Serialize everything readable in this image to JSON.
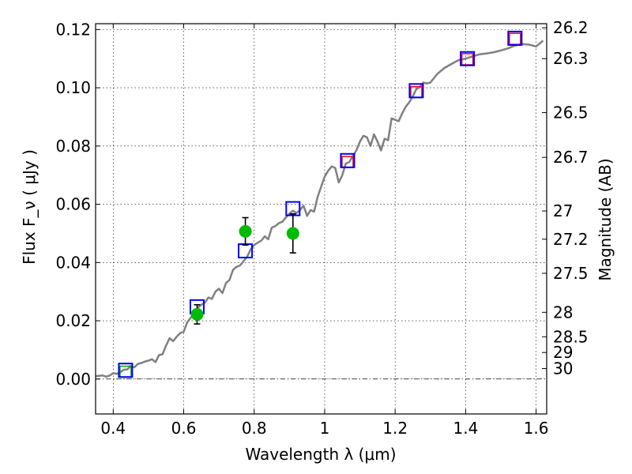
{
  "chart_data": {
    "type": "scatter",
    "xlabel": "Wavelength  λ (μm)",
    "ylabel_left": "Flux  F_ν  ( μJy )",
    "ylabel_right": "Magnitude (AB)",
    "xlim": [
      0.35,
      1.63
    ],
    "ylim": [
      -0.012,
      0.122
    ],
    "grid": true,
    "x_ticks": [
      0.4,
      0.6,
      0.8,
      1.0,
      1.2,
      1.4,
      1.6
    ],
    "x_tick_labels": [
      "0.4",
      "0.6",
      "0.8",
      "1",
      "1.2",
      "1.4",
      "1.6"
    ],
    "y_ticks": [
      0.0,
      0.02,
      0.04,
      0.06,
      0.08,
      0.1,
      0.12
    ],
    "y_tick_labels": [
      "0.00",
      "0.02",
      "0.04",
      "0.06",
      "0.08",
      "0.10",
      "0.12"
    ],
    "right_ticks": [
      {
        "label": "26.2",
        "flux": 0.1206
      },
      {
        "label": "26.3",
        "flux": 0.11
      },
      {
        "label": "26.5",
        "flux": 0.0915
      },
      {
        "label": "26.7",
        "flux": 0.0761
      },
      {
        "label": "27",
        "flux": 0.0577
      },
      {
        "label": "27.2",
        "flux": 0.048
      },
      {
        "label": "27.5",
        "flux": 0.0363
      },
      {
        "label": "28",
        "flux": 0.0229
      },
      {
        "label": "28.5",
        "flux": 0.0145
      },
      {
        "label": "29",
        "flux": 0.0091
      },
      {
        "label": "30",
        "flux": 0.0036
      }
    ],
    "series": [
      {
        "kind": "sed_model_line",
        "color": "#808080",
        "x": [
          0.35,
          0.37,
          0.38,
          0.39,
          0.4,
          0.41,
          0.42,
          0.43,
          0.44,
          0.45,
          0.46,
          0.47,
          0.48,
          0.49,
          0.5,
          0.51,
          0.52,
          0.53,
          0.54,
          0.55,
          0.56,
          0.57,
          0.58,
          0.59,
          0.6,
          0.61,
          0.62,
          0.63,
          0.64,
          0.65,
          0.66,
          0.67,
          0.68,
          0.69,
          0.7,
          0.71,
          0.72,
          0.73,
          0.74,
          0.75,
          0.76,
          0.77,
          0.78,
          0.79,
          0.8,
          0.81,
          0.82,
          0.83,
          0.84,
          0.85,
          0.86,
          0.87,
          0.88,
          0.89,
          0.9,
          0.91,
          0.92,
          0.93,
          0.94,
          0.95,
          0.96,
          0.97,
          0.98,
          0.99,
          1.0,
          1.01,
          1.02,
          1.03,
          1.04,
          1.05,
          1.06,
          1.07,
          1.08,
          1.09,
          1.1,
          1.11,
          1.12,
          1.13,
          1.14,
          1.15,
          1.16,
          1.17,
          1.18,
          1.19,
          1.2,
          1.21,
          1.22,
          1.23,
          1.24,
          1.25,
          1.26,
          1.27,
          1.28,
          1.29,
          1.3,
          1.32,
          1.34,
          1.36,
          1.38,
          1.4,
          1.42,
          1.44,
          1.46,
          1.48,
          1.5,
          1.52,
          1.54,
          1.56,
          1.58,
          1.6,
          1.62
        ],
        "y": [
          0.001,
          0.0012,
          0.0008,
          0.0012,
          0.002,
          0.0018,
          0.0023,
          0.0032,
          0.0033,
          0.0045,
          0.004,
          0.0052,
          0.0055,
          0.006,
          0.0063,
          0.0068,
          0.0058,
          0.0082,
          0.0085,
          0.0115,
          0.014,
          0.013,
          0.0145,
          0.0158,
          0.0162,
          0.0195,
          0.021,
          0.0228,
          0.0245,
          0.0255,
          0.0262,
          0.028,
          0.0275,
          0.03,
          0.031,
          0.0295,
          0.033,
          0.034,
          0.0375,
          0.0385,
          0.039,
          0.0405,
          0.042,
          0.0445,
          0.046,
          0.0468,
          0.0475,
          0.049,
          0.048,
          0.052,
          0.0525,
          0.0535,
          0.054,
          0.0555,
          0.0568,
          0.0578,
          0.057,
          0.058,
          0.0595,
          0.056,
          0.058,
          0.0575,
          0.0625,
          0.066,
          0.0695,
          0.0715,
          0.073,
          0.0725,
          0.0675,
          0.07,
          0.074,
          0.0745,
          0.0765,
          0.0785,
          0.0815,
          0.0835,
          0.083,
          0.08,
          0.084,
          0.0815,
          0.0785,
          0.0825,
          0.082,
          0.0895,
          0.089,
          0.0885,
          0.0912,
          0.0935,
          0.095,
          0.097,
          0.0995,
          0.1002,
          0.1018,
          0.1015,
          0.1018,
          0.1048,
          0.1068,
          0.1082,
          0.1095,
          0.11,
          0.1108,
          0.1115,
          0.1118,
          0.1122,
          0.1128,
          0.1135,
          0.1145,
          0.115,
          0.1148,
          0.1142,
          0.1162
        ]
      },
      {
        "kind": "model_photometry_blue_squares",
        "color": "#0000ff",
        "x": [
          0.435,
          0.638,
          0.775,
          0.91,
          1.065,
          1.26,
          1.405,
          1.54
        ],
        "y": [
          0.003,
          0.0248,
          0.044,
          0.0585,
          0.075,
          0.099,
          0.11,
          0.117
        ]
      },
      {
        "kind": "observed_small_squares",
        "colors": [
          "#00aa00",
          "#ff0000"
        ],
        "x": [
          0.435,
          1.065,
          1.26,
          1.405,
          1.54
        ],
        "y": [
          0.0025,
          0.0745,
          0.0985,
          0.1098,
          0.1168
        ]
      },
      {
        "kind": "observed_points_with_errors",
        "color": "#00bb00",
        "x": [
          0.638,
          0.775,
          0.91
        ],
        "y": [
          0.0222,
          0.0507,
          0.05
        ],
        "yerr_low": [
          0.0033,
          0.0047,
          0.0067
        ],
        "yerr_high": [
          0.0033,
          0.0047,
          0.0067
        ]
      }
    ]
  }
}
